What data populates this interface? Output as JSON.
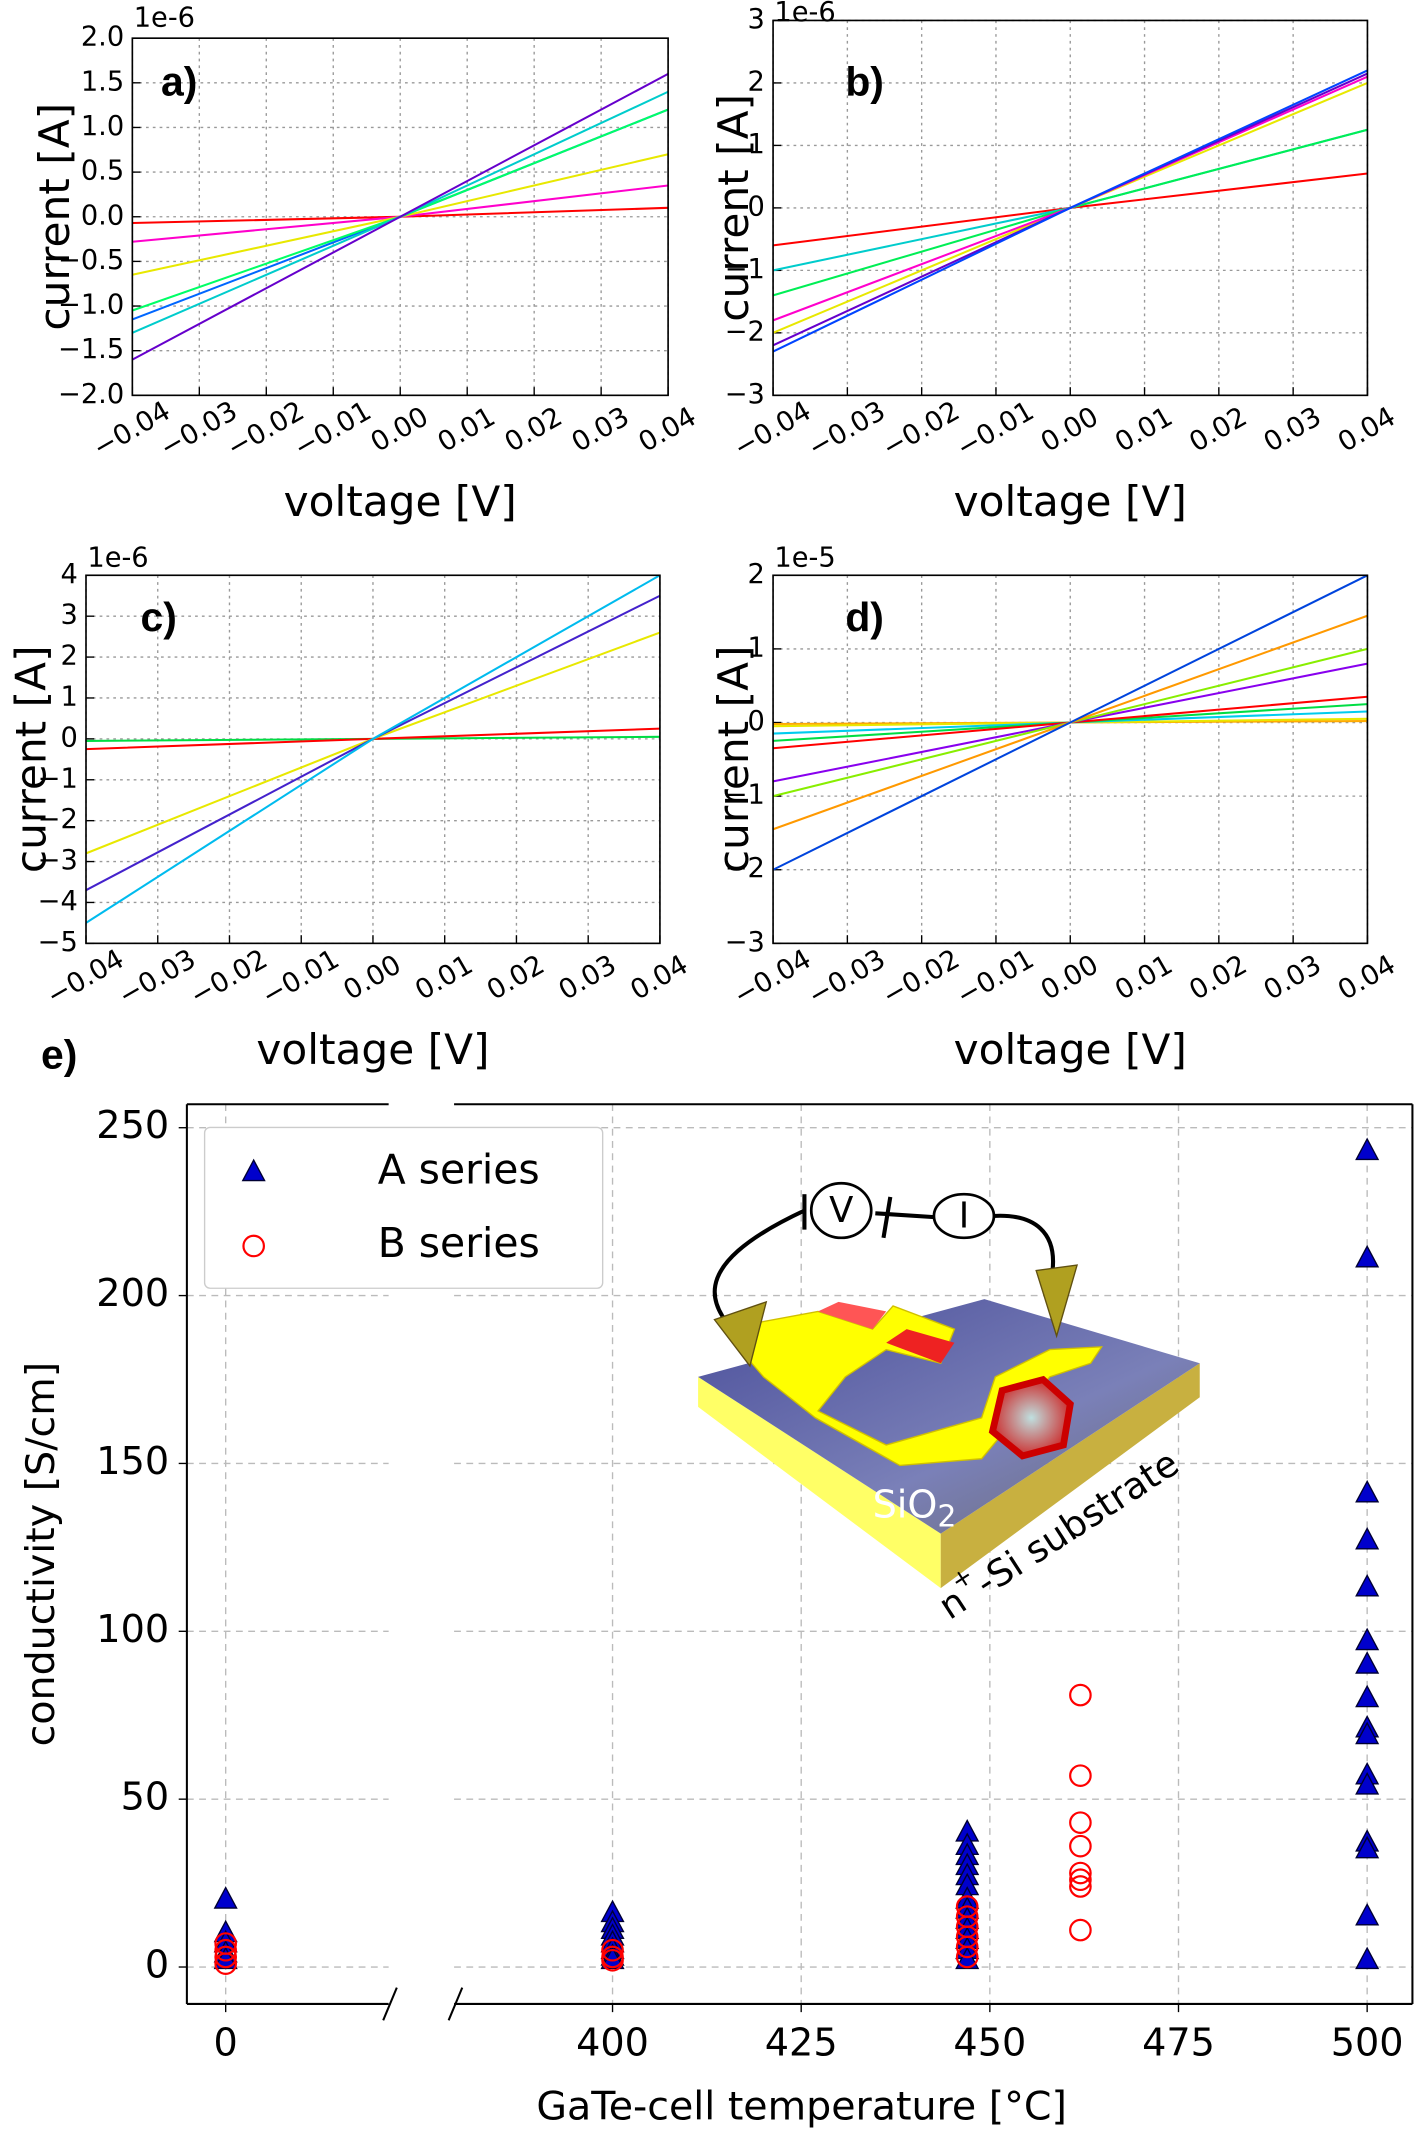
{
  "chart_data": [
    {
      "type": "line",
      "annotation": "a)",
      "offset_label": "1e-6",
      "xlabel": "voltage [V]",
      "ylabel": "current [A]",
      "x": [
        -0.04,
        0,
        0.04
      ],
      "series": [
        {
          "color": "#ff0000",
          "values": [
            -0.07,
            0,
            0.1
          ]
        },
        {
          "color": "#ff00cc",
          "values": [
            -0.28,
            0,
            0.35
          ]
        },
        {
          "color": "#e8e800",
          "values": [
            -0.65,
            0,
            0.7
          ]
        },
        {
          "color": "#0066ff",
          "values": [
            -1.15,
            0,
            1.2
          ]
        },
        {
          "color": "#00ff66",
          "values": [
            -1.05,
            0,
            1.2
          ]
        },
        {
          "color": "#00cccc",
          "values": [
            -1.3,
            0,
            1.4
          ]
        },
        {
          "color": "#6600cc",
          "values": [
            -1.6,
            0,
            1.6
          ]
        }
      ],
      "xlim": [
        -0.04,
        0.04
      ],
      "ylim": [
        -2,
        2
      ],
      "xticks": [
        {
          "value": -0.04,
          "label": "−0.04"
        },
        {
          "value": -0.03,
          "label": "−0.03"
        },
        {
          "value": -0.02,
          "label": "−0.02"
        },
        {
          "value": -0.01,
          "label": "−0.01"
        },
        {
          "value": 0,
          "label": "0.00"
        },
        0.01,
        0.02,
        0.03,
        0.04
      ],
      "yticks": [
        {
          "value": -2,
          "label": "−2.0"
        },
        {
          "value": -1.5,
          "label": "−1.5"
        },
        {
          "value": -1,
          "label": "−1.0"
        },
        {
          "value": -0.5,
          "label": "−0.5"
        },
        {
          "value": 0,
          "label": "0.0"
        },
        0.5,
        {
          "value": 1,
          "label": "1.0"
        },
        1.5,
        {
          "value": 2,
          "label": "2.0"
        }
      ],
      "grid": true
    },
    {
      "type": "line",
      "annotation": "b)",
      "offset_label": "1e-6",
      "xlabel": "voltage [V]",
      "ylabel": "current [A]",
      "x": [
        -0.04,
        0,
        0.04
      ],
      "series": [
        {
          "color": "#ff0000",
          "values": [
            -0.6,
            0,
            0.55
          ]
        },
        {
          "color": "#00cccc",
          "values": [
            -1.0,
            0,
            1.25
          ]
        },
        {
          "color": "#00ee55",
          "values": [
            -1.4,
            0,
            1.25
          ]
        },
        {
          "color": "#e8e800",
          "values": [
            -2.0,
            0,
            2.0
          ]
        },
        {
          "color": "#ff00cc",
          "values": [
            -1.8,
            0,
            2.1
          ]
        },
        {
          "color": "#6600cc",
          "values": [
            -2.2,
            0,
            2.15
          ]
        },
        {
          "color": "#0044ff",
          "values": [
            -2.3,
            0,
            2.2
          ]
        }
      ],
      "xlim": [
        -0.04,
        0.04
      ],
      "ylim": [
        -3,
        3
      ],
      "xticks": [
        {
          "value": -0.04,
          "label": "−0.04"
        },
        {
          "value": -0.03,
          "label": "−0.03"
        },
        {
          "value": -0.02,
          "label": "−0.02"
        },
        {
          "value": -0.01,
          "label": "−0.01"
        },
        {
          "value": 0,
          "label": "0.00"
        },
        0.01,
        0.02,
        0.03,
        0.04
      ],
      "yticks": [
        {
          "value": -3,
          "label": "−3"
        },
        {
          "value": -2,
          "label": "−2"
        },
        {
          "value": -1,
          "label": "−1"
        },
        0,
        1,
        2,
        3
      ],
      "grid": true
    },
    {
      "type": "line",
      "annotation": "c)",
      "offset_label": "1e-6",
      "xlabel": "voltage [V]",
      "ylabel": "current [A]",
      "x": [
        -0.04,
        0,
        0.04
      ],
      "series": [
        {
          "color": "#00dd44",
          "values": [
            -0.05,
            0,
            0.05
          ]
        },
        {
          "color": "#ff0000",
          "values": [
            -0.25,
            0,
            0.25
          ]
        },
        {
          "color": "#e8e800",
          "values": [
            -2.8,
            0,
            2.6
          ]
        },
        {
          "color": "#4422cc",
          "values": [
            -3.7,
            0,
            3.5
          ]
        },
        {
          "color": "#00bbee",
          "values": [
            -4.5,
            0,
            4.0
          ]
        }
      ],
      "xlim": [
        -0.04,
        0.04
      ],
      "ylim": [
        -5,
        4
      ],
      "xticks": [
        {
          "value": -0.04,
          "label": "−0.04"
        },
        {
          "value": -0.03,
          "label": "−0.03"
        },
        {
          "value": -0.02,
          "label": "−0.02"
        },
        {
          "value": -0.01,
          "label": "−0.01"
        },
        {
          "value": 0,
          "label": "0.00"
        },
        0.01,
        0.02,
        0.03,
        0.04
      ],
      "yticks": [
        {
          "value": -5,
          "label": "−5"
        },
        {
          "value": -4,
          "label": "−4"
        },
        {
          "value": -3,
          "label": "−3"
        },
        {
          "value": -2,
          "label": "−2"
        },
        {
          "value": -1,
          "label": "−1"
        },
        0,
        1,
        2,
        3,
        4
      ],
      "grid": true
    },
    {
      "type": "line",
      "annotation": "d)",
      "offset_label": "1e-5",
      "xlabel": "voltage [V]",
      "ylabel": "current [A]",
      "x": [
        -0.04,
        0,
        0.04
      ],
      "series": [
        {
          "color": "#ffaa00",
          "values": [
            -0.02,
            0,
            0.02
          ]
        },
        {
          "color": "#e8e800",
          "values": [
            -0.05,
            0,
            0.05
          ]
        },
        {
          "color": "#00ccee",
          "values": [
            -0.15,
            0,
            0.15
          ]
        },
        {
          "color": "#00dd44",
          "values": [
            -0.25,
            0,
            0.25
          ]
        },
        {
          "color": "#ff0000",
          "values": [
            -0.35,
            0,
            0.35
          ]
        },
        {
          "color": "#8800ee",
          "values": [
            -0.8,
            0,
            0.8
          ]
        },
        {
          "color": "#88ee00",
          "values": [
            -1.0,
            0,
            1.0
          ]
        },
        {
          "color": "#ff9900",
          "values": [
            -1.45,
            0,
            1.45
          ]
        },
        {
          "color": "#0044dd",
          "values": [
            -2.0,
            0,
            2.0
          ]
        }
      ],
      "xlim": [
        -0.04,
        0.04
      ],
      "ylim": [
        -3,
        2
      ],
      "xticks": [
        {
          "value": -0.04,
          "label": "−0.04"
        },
        {
          "value": -0.03,
          "label": "−0.03"
        },
        {
          "value": -0.02,
          "label": "−0.02"
        },
        {
          "value": -0.01,
          "label": "−0.01"
        },
        {
          "value": 0,
          "label": "0.00"
        },
        0.01,
        0.02,
        0.03,
        0.04
      ],
      "yticks": [
        {
          "value": -3,
          "label": "−3"
        },
        {
          "value": -2,
          "label": "−2"
        },
        {
          "value": -1,
          "label": "−1"
        },
        0,
        1,
        2
      ],
      "grid": true
    },
    {
      "type": "scatter",
      "annotation": "e)",
      "xlabel": "GaTe-cell temperature [°C]",
      "ylabel": "conductivity [S/cm]",
      "series": [
        {
          "name": "A series",
          "color": "#0000cc",
          "marker": "triangle",
          "x": [
            0,
            0,
            0,
            0,
            0,
            400,
            400,
            400,
            400,
            400,
            400,
            400,
            400,
            447,
            447,
            447,
            447,
            447,
            447,
            447,
            447,
            447,
            447,
            447,
            447,
            447,
            500,
            500,
            500,
            500,
            500,
            500,
            500,
            500,
            500,
            500,
            500,
            500,
            500,
            500,
            500,
            500
          ],
          "values": [
            20,
            10,
            7,
            4,
            2,
            16,
            13,
            11,
            9,
            7,
            5,
            3,
            2,
            40,
            36,
            33,
            30,
            27,
            24,
            20,
            17,
            14,
            11,
            8,
            5,
            2,
            243,
            211,
            141,
            127,
            113,
            97,
            90,
            80,
            71,
            69,
            57,
            54,
            37,
            35,
            15,
            2
          ]
        },
        {
          "name": "B series",
          "color": "#ff0000",
          "marker": "circle",
          "x": [
            0,
            0,
            0,
            0,
            400,
            400,
            400,
            447,
            447,
            447,
            447,
            447,
            447,
            462,
            462,
            462,
            462,
            462,
            462,
            462,
            462
          ],
          "values": [
            7,
            5,
            3,
            1,
            5,
            3,
            2,
            18,
            15,
            12,
            9,
            6,
            3,
            81,
            57,
            43,
            36,
            28,
            26,
            24,
            11
          ]
        }
      ],
      "x_segments": [
        [
          -5,
          21
        ],
        [
          379,
          506
        ]
      ],
      "ylim": [
        -11,
        257
      ],
      "xticks": [
        0,
        400,
        425,
        450,
        475,
        500
      ],
      "yticks": [
        0,
        50,
        100,
        150,
        200,
        250
      ],
      "grid": true,
      "legend": "upper left"
    }
  ],
  "inset": {
    "source": "V",
    "meter": "I",
    "oxide": "SiO",
    "oxide_index": "2",
    "substrate_symbol": "n",
    "substrate_index": "+",
    "substrate_name": "-Si substrate"
  }
}
